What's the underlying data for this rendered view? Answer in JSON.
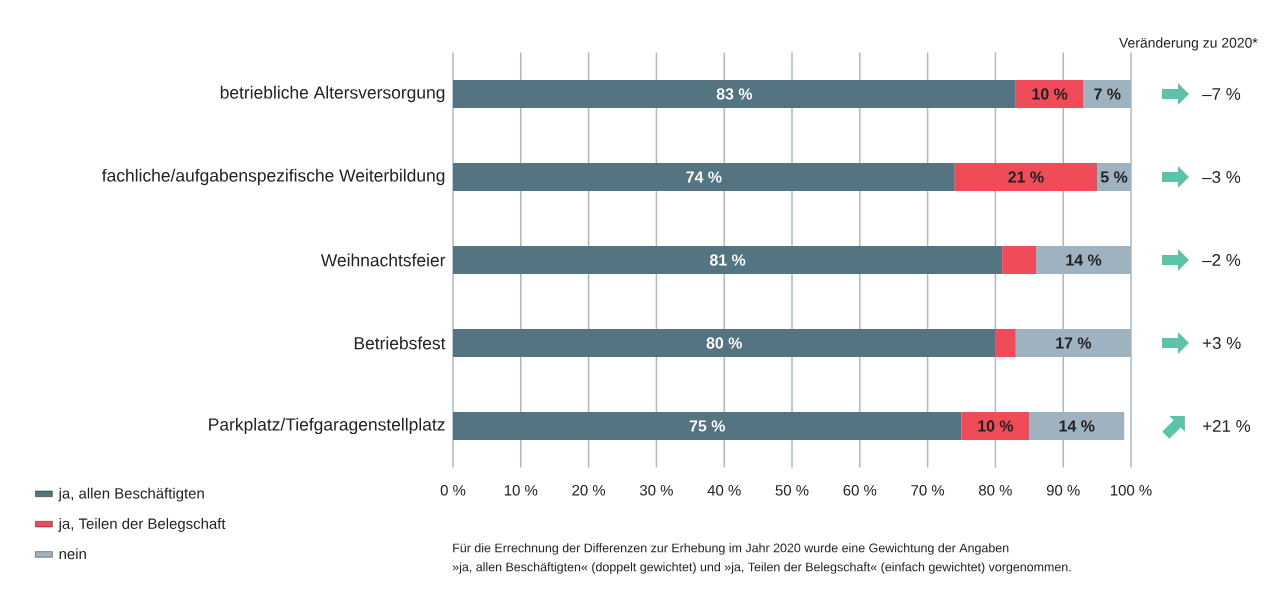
{
  "chart_data": {
    "type": "bar",
    "orientation": "horizontal",
    "stacked": true,
    "categories": [
      "betriebliche Altersversorgung",
      "fachliche/aufgabenspezifische Weiterbildung",
      "Weihnachtsfeier",
      "Betriebsfest",
      "Parkplatz/Tiefgaragenstellplatz"
    ],
    "series": [
      {
        "name": "ja, allen Beschäftigten",
        "color": "#537480",
        "values": [
          83,
          74,
          81,
          80,
          75
        ],
        "value_labels": [
          "83 %",
          "74 %",
          "81 %",
          "80 %",
          "75 %"
        ]
      },
      {
        "name": "ja, Teilen der Belegschaft",
        "color": "#ef4b58",
        "values": [
          10,
          21,
          5,
          3,
          10
        ],
        "value_labels": [
          "10 %",
          "21 %",
          null,
          null,
          "10 %"
        ]
      },
      {
        "name": "nein",
        "color": "#9fb2c0",
        "values": [
          7,
          5,
          14,
          17,
          14
        ],
        "value_labels": [
          "7 %",
          "5 %",
          "14 %",
          "17 %",
          "14 %"
        ]
      }
    ],
    "xlim": [
      0,
      100
    ],
    "xticks": [
      {
        "value": 0,
        "label": "0 %"
      },
      {
        "value": 10,
        "label": "10 %"
      },
      {
        "value": 20,
        "label": "20 %"
      },
      {
        "value": 30,
        "label": "30 %"
      },
      {
        "value": 40,
        "label": "40 %"
      },
      {
        "value": 50,
        "label": "50 %"
      },
      {
        "value": 60,
        "label": "60 %"
      },
      {
        "value": 70,
        "label": "70 %"
      },
      {
        "value": 80,
        "label": "80 %"
      },
      {
        "value": 90,
        "label": "90 %"
      },
      {
        "value": 100,
        "label": "100 %"
      }
    ],
    "grid": "x",
    "legend": "bottom left",
    "annotations": [
      "Veränderung zu 2020*",
      "–7 %",
      "–3 %",
      "–2 %",
      "+3 %",
      "+21 %",
      "Für die Errechnung der Differenzen zur Erhebung im Jahr 2020 wurde eine Gewichtung der Angaben",
      "»ja, allen Beschäftigten« (doppelt gewichtet) und »ja, Teilen der Belegschaft« (einfach gewichtet) vorgenommen."
    ]
  }
}
